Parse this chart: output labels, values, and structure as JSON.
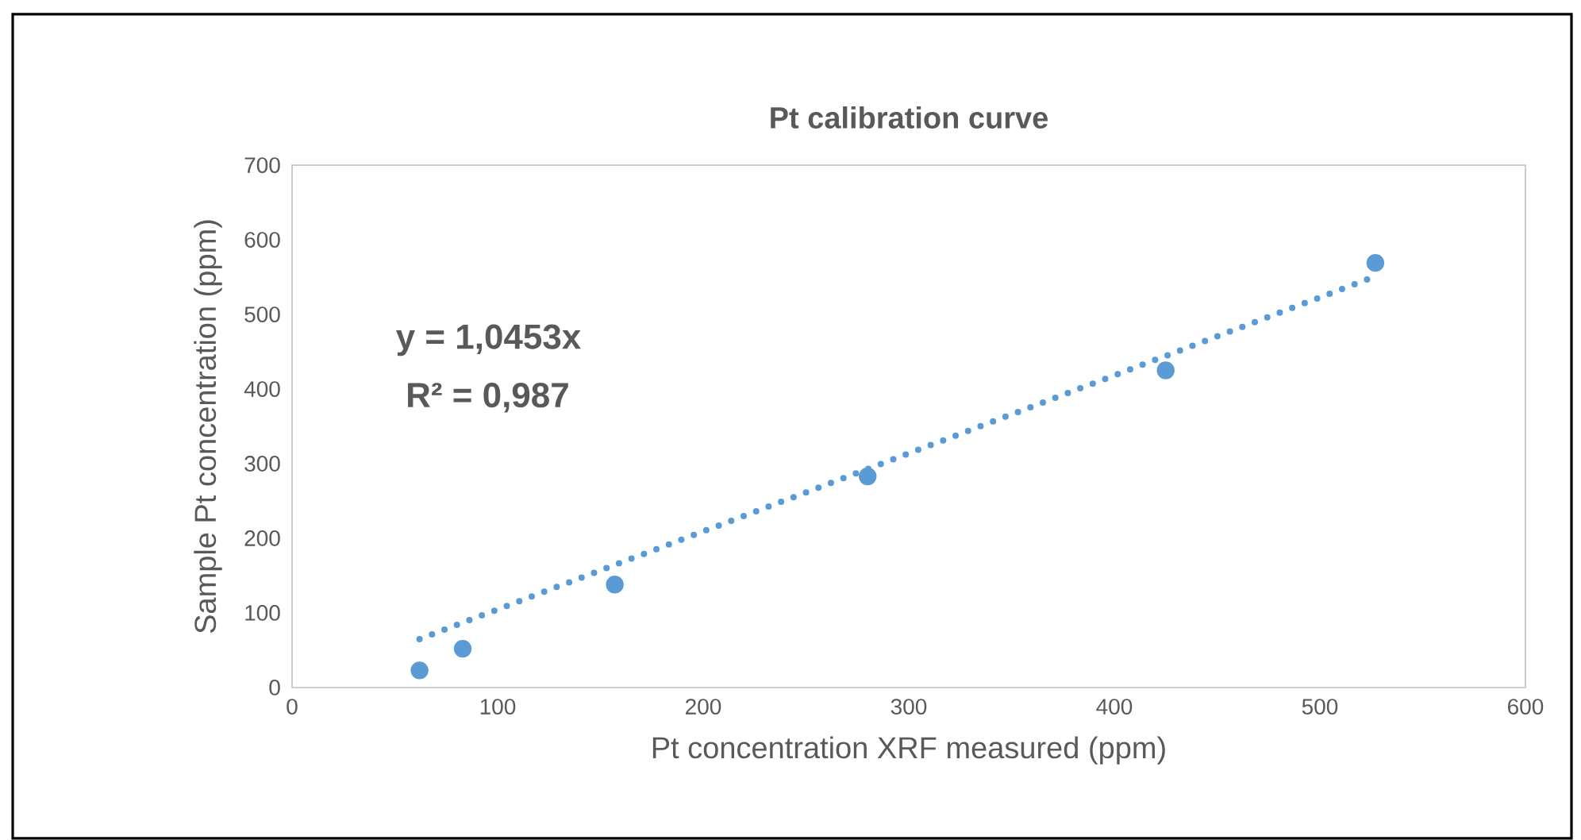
{
  "chart_data": {
    "type": "scatter",
    "title": "Pt  calibration curve",
    "xlabel": "Pt concentration XRF measured (ppm)",
    "ylabel": "Sample Pt concentration (ppm)",
    "annotations": [
      "y = 1,0453x",
      "R² = 0,987"
    ],
    "series": [
      {
        "color": "#5b9bd5",
        "marker": "circle",
        "x": [
          62,
          83,
          157,
          280,
          425,
          527
        ],
        "values": [
          23,
          52,
          138,
          283,
          425,
          569
        ]
      },
      {
        "type": "line",
        "color": "#5b9bd5",
        "line_style": "dotted",
        "marker": "none",
        "x": [
          62,
          527
        ],
        "values": [
          65,
          551
        ]
      }
    ],
    "xlim": [
      0,
      600
    ],
    "ylim": [
      0,
      700
    ],
    "xticks": [
      0,
      100,
      200,
      300,
      400,
      500,
      600
    ],
    "yticks": [
      0,
      100,
      200,
      300,
      400,
      500,
      600,
      700
    ]
  }
}
